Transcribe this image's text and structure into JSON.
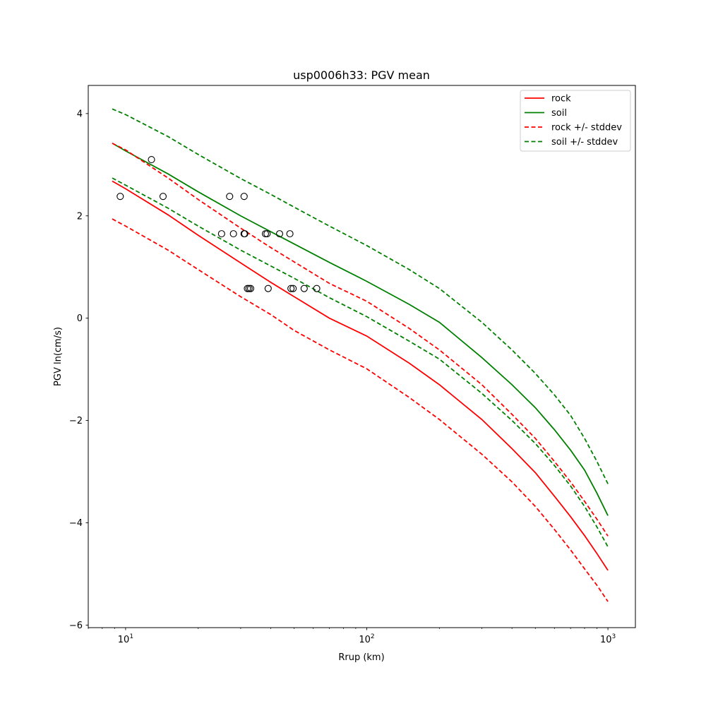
{
  "chart_data": {
    "type": "line",
    "title": "usp0006h33: PGV mean",
    "xlabel": "Rrup (km)",
    "ylabel": "PGV ln(cm/s)",
    "xscale": "log",
    "xlim": [
      7.0,
      1300.0
    ],
    "ylim": [
      -6.05,
      4.55
    ],
    "x_ticks": [
      {
        "value": 10,
        "base": "10",
        "exp": "1"
      },
      {
        "value": 100,
        "base": "10",
        "exp": "2"
      },
      {
        "value": 1000,
        "base": "10",
        "exp": "3"
      }
    ],
    "y_ticks": [
      {
        "value": -6,
        "label": "−6"
      },
      {
        "value": -4,
        "label": "−4"
      },
      {
        "value": -2,
        "label": "−2"
      },
      {
        "value": 0,
        "label": "0"
      },
      {
        "value": 2,
        "label": "2"
      },
      {
        "value": 4,
        "label": "4"
      }
    ],
    "grid": false,
    "legend_placement": "top-right",
    "series": [
      {
        "name": "rock",
        "color": "#ff0000",
        "dash": "solid",
        "x": [
          8.8,
          10,
          15,
          20,
          30,
          40,
          50,
          70,
          100,
          150,
          200,
          300,
          400,
          500,
          600,
          700,
          800,
          900,
          1000
        ],
        "y": [
          2.68,
          2.53,
          2.02,
          1.62,
          1.08,
          0.7,
          0.42,
          0.0,
          -0.35,
          -0.88,
          -1.3,
          -1.98,
          -2.55,
          -3.02,
          -3.48,
          -3.88,
          -4.25,
          -4.6,
          -4.93
        ]
      },
      {
        "name": "soil",
        "color": "#008000",
        "dash": "solid",
        "x": [
          8.8,
          10,
          15,
          20,
          30,
          40,
          50,
          70,
          100,
          150,
          200,
          300,
          400,
          500,
          600,
          700,
          800,
          900,
          1000
        ],
        "y": [
          3.42,
          3.27,
          2.82,
          2.47,
          2.0,
          1.69,
          1.45,
          1.09,
          0.72,
          0.27,
          -0.08,
          -0.77,
          -1.3,
          -1.75,
          -2.18,
          -2.58,
          -2.97,
          -3.42,
          -3.86
        ]
      },
      {
        "name": "rock +/- stddev",
        "color": "#ff0000",
        "dash": "dashed",
        "x": [
          8.8,
          10,
          15,
          20,
          30,
          40,
          50,
          70,
          100,
          150,
          200,
          300,
          400,
          500,
          600,
          700,
          800,
          900,
          1000
        ],
        "y": [
          3.42,
          3.29,
          2.74,
          2.32,
          1.76,
          1.38,
          1.1,
          0.68,
          0.33,
          -0.2,
          -0.62,
          -1.3,
          -1.88,
          -2.35,
          -2.8,
          -3.2,
          -3.58,
          -3.93,
          -4.26
        ]
      },
      {
        "name": "",
        "color": "#ff0000",
        "dash": "dashed",
        "x": [
          8.8,
          10,
          15,
          20,
          30,
          40,
          50,
          70,
          100,
          150,
          200,
          300,
          400,
          500,
          600,
          700,
          800,
          900,
          1000
        ],
        "y": [
          1.94,
          1.8,
          1.33,
          0.95,
          0.42,
          0.07,
          -0.24,
          -0.62,
          -0.99,
          -1.55,
          -1.98,
          -2.66,
          -3.2,
          -3.68,
          -4.13,
          -4.53,
          -4.9,
          -5.22,
          -5.54
        ]
      },
      {
        "name": "soil +/- stddev",
        "color": "#008000",
        "dash": "dashed",
        "x": [
          8.8,
          10,
          15,
          20,
          30,
          40,
          50,
          70,
          100,
          150,
          200,
          300,
          400,
          500,
          600,
          700,
          800,
          900,
          1000
        ],
        "y": [
          4.09,
          3.98,
          3.55,
          3.2,
          2.73,
          2.42,
          2.17,
          1.8,
          1.42,
          0.95,
          0.58,
          -0.08,
          -0.62,
          -1.08,
          -1.5,
          -1.9,
          -2.35,
          -2.8,
          -3.24
        ]
      },
      {
        "name": "",
        "color": "#008000",
        "dash": "dashed",
        "x": [
          8.8,
          10,
          15,
          20,
          30,
          40,
          50,
          70,
          100,
          150,
          200,
          300,
          400,
          500,
          600,
          700,
          800,
          900,
          1000
        ],
        "y": [
          2.74,
          2.6,
          2.15,
          1.8,
          1.33,
          1.02,
          0.78,
          0.4,
          0.03,
          -0.45,
          -0.8,
          -1.47,
          -2.0,
          -2.45,
          -2.88,
          -3.28,
          -3.68,
          -4.08,
          -4.47
        ]
      }
    ],
    "scatter": {
      "marker": "open-circle",
      "color": "#000000",
      "points": [
        {
          "x": 9.5,
          "y": 2.38
        },
        {
          "x": 12.8,
          "y": 3.1
        },
        {
          "x": 14.3,
          "y": 2.38
        },
        {
          "x": 27.0,
          "y": 2.38
        },
        {
          "x": 31.0,
          "y": 2.38
        },
        {
          "x": 25.0,
          "y": 1.65
        },
        {
          "x": 28.0,
          "y": 1.65
        },
        {
          "x": 31.0,
          "y": 1.65
        },
        {
          "x": 31.2,
          "y": 1.65
        },
        {
          "x": 38.0,
          "y": 1.65
        },
        {
          "x": 38.6,
          "y": 1.65
        },
        {
          "x": 43.5,
          "y": 1.65
        },
        {
          "x": 48.0,
          "y": 1.65
        },
        {
          "x": 32.0,
          "y": 0.58
        },
        {
          "x": 32.5,
          "y": 0.58
        },
        {
          "x": 33.0,
          "y": 0.58
        },
        {
          "x": 39.0,
          "y": 0.58
        },
        {
          "x": 48.5,
          "y": 0.58
        },
        {
          "x": 49.5,
          "y": 0.58
        },
        {
          "x": 55.0,
          "y": 0.58
        },
        {
          "x": 62.0,
          "y": 0.58
        }
      ]
    }
  }
}
